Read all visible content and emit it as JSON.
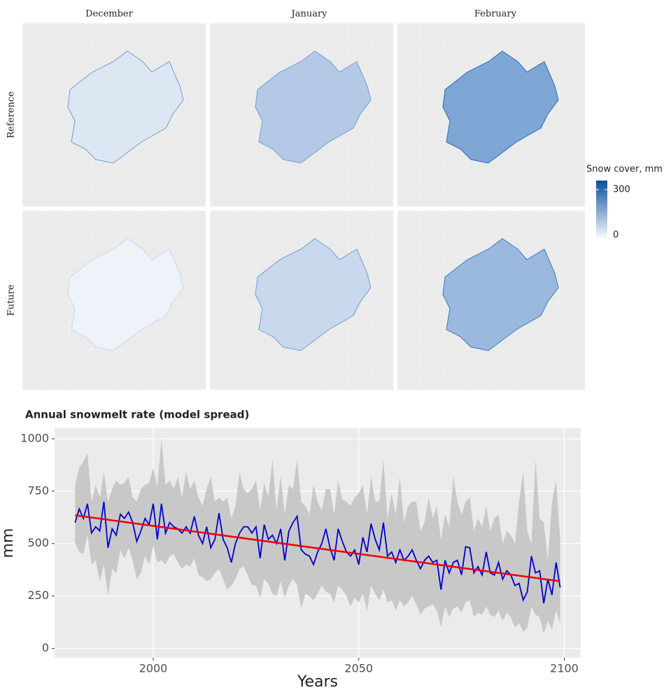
{
  "maps": {
    "columns": [
      "December",
      "January",
      "February"
    ],
    "rows": [
      "Reference",
      "Future"
    ],
    "legend_title": "Snow cover, mm",
    "legend_ticks": [
      0,
      300
    ],
    "legend_lim": [
      -32,
      360
    ]
  },
  "chart_data": {
    "type": "line",
    "title": "Annual snowmelt rate (model spread)",
    "x_label": "Years",
    "y_label": "mm",
    "xlim": [
      1976,
      2104
    ],
    "xticks": [
      2000,
      2050,
      2100
    ],
    "ylim": [
      -45,
      1050
    ],
    "yticks": [
      0,
      250,
      500,
      750,
      1000
    ],
    "grid": true,
    "x": [
      1981,
      1982,
      1983,
      1984,
      1985,
      1986,
      1987,
      1988,
      1989,
      1990,
      1991,
      1992,
      1993,
      1994,
      1995,
      1996,
      1997,
      1998,
      1999,
      2000,
      2001,
      2002,
      2003,
      2004,
      2005,
      2006,
      2007,
      2008,
      2009,
      2010,
      2011,
      2012,
      2013,
      2014,
      2015,
      2016,
      2017,
      2018,
      2019,
      2020,
      2021,
      2022,
      2023,
      2024,
      2025,
      2026,
      2027,
      2028,
      2029,
      2030,
      2031,
      2032,
      2033,
      2034,
      2035,
      2036,
      2037,
      2038,
      2039,
      2040,
      2041,
      2042,
      2043,
      2044,
      2045,
      2046,
      2047,
      2048,
      2049,
      2050,
      2051,
      2052,
      2053,
      2054,
      2055,
      2056,
      2057,
      2058,
      2059,
      2060,
      2061,
      2062,
      2063,
      2064,
      2065,
      2066,
      2067,
      2068,
      2069,
      2070,
      2071,
      2072,
      2073,
      2074,
      2075,
      2076,
      2077,
      2078,
      2079,
      2080,
      2081,
      2082,
      2083,
      2084,
      2085,
      2086,
      2087,
      2088,
      2089,
      2090,
      2091,
      2092,
      2093,
      2094,
      2095,
      2096,
      2097,
      2098,
      2099
    ],
    "series": [
      {
        "color": "#0000cc",
        "values": [
          600,
          665,
          620,
          690,
          550,
          580,
          560,
          700,
          480,
          570,
          540,
          640,
          620,
          650,
          600,
          510,
          560,
          620,
          590,
          690,
          520,
          690,
          550,
          600,
          580,
          570,
          550,
          580,
          550,
          630,
          540,
          500,
          580,
          480,
          520,
          645,
          520,
          480,
          410,
          500,
          550,
          580,
          580,
          550,
          580,
          430,
          590,
          520,
          540,
          500,
          570,
          420,
          560,
          600,
          630,
          470,
          450,
          440,
          400,
          460,
          500,
          570,
          480,
          420,
          570,
          510,
          460,
          440,
          470,
          400,
          530,
          460,
          595,
          520,
          470,
          600,
          440,
          460,
          410,
          470,
          420,
          440,
          470,
          420,
          380,
          420,
          440,
          410,
          420,
          280,
          420,
          360,
          410,
          420,
          350,
          485,
          480,
          360,
          390,
          350,
          460,
          360,
          350,
          410,
          330,
          370,
          350,
          300,
          310,
          230,
          270,
          440,
          360,
          370,
          215,
          330,
          255,
          410,
          290
        ]
      }
    ],
    "band": {
      "color": "#c8c8c8",
      "lower": [
        500,
        460,
        450,
        540,
        400,
        420,
        320,
        400,
        250,
        380,
        360,
        470,
        430,
        480,
        420,
        330,
        360,
        440,
        400,
        490,
        410,
        420,
        400,
        440,
        450,
        410,
        380,
        400,
        390,
        430,
        350,
        340,
        320,
        330,
        360,
        380,
        330,
        280,
        300,
        330,
        380,
        390,
        350,
        300,
        300,
        240,
        330,
        310,
        260,
        250,
        320,
        240,
        300,
        330,
        300,
        190,
        260,
        250,
        230,
        260,
        300,
        270,
        260,
        220,
        300,
        280,
        250,
        200,
        240,
        220,
        260,
        180,
        300,
        260,
        230,
        280,
        220,
        230,
        180,
        230,
        200,
        220,
        250,
        210,
        160,
        190,
        200,
        210,
        180,
        100,
        200,
        150,
        190,
        200,
        170,
        220,
        230,
        150,
        170,
        160,
        200,
        160,
        150,
        180,
        130,
        170,
        150,
        100,
        120,
        80,
        100,
        200,
        160,
        150,
        70,
        130,
        90,
        180,
        120
      ],
      "upper": [
        780,
        860,
        890,
        930,
        700,
        780,
        720,
        840,
        700,
        760,
        800,
        780,
        790,
        820,
        720,
        700,
        760,
        780,
        790,
        860,
        770,
        1000,
        780,
        800,
        760,
        820,
        720,
        840,
        760,
        800,
        720,
        680,
        760,
        820,
        700,
        720,
        700,
        720,
        620,
        680,
        840,
        760,
        740,
        760,
        800,
        660,
        790,
        720,
        900,
        660,
        820,
        640,
        780,
        760,
        900,
        700,
        680,
        640,
        780,
        700,
        660,
        760,
        760,
        640,
        800,
        710,
        700,
        680,
        720,
        740,
        780,
        640,
        820,
        700,
        700,
        900,
        620,
        740,
        640,
        820,
        600,
        680,
        700,
        700,
        560,
        600,
        720,
        620,
        680,
        520,
        640,
        580,
        820,
        700,
        640,
        700,
        720,
        560,
        620,
        580,
        680,
        560,
        620,
        640,
        500,
        560,
        540,
        500,
        700,
        840,
        560,
        500,
        900,
        620,
        600,
        420,
        700,
        800,
        520
      ]
    },
    "trend": {
      "color": "#ee0000",
      "x": [
        1981,
        2099
      ],
      "values": [
        635,
        320
      ]
    }
  }
}
